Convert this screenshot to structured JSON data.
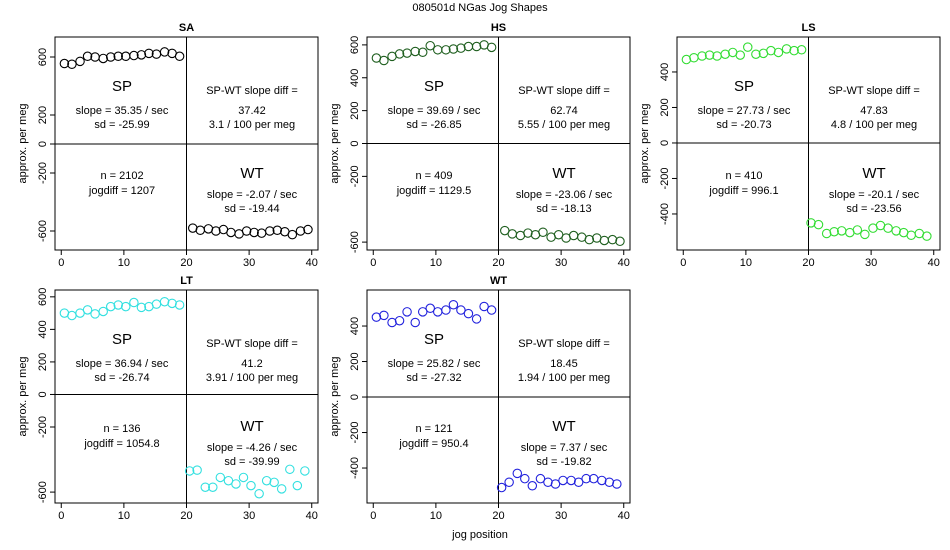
{
  "title": "080501d   NGas Jog Shapes",
  "xlabel": "jog position",
  "chart_data": [
    {
      "type": "scatter",
      "title": "SA",
      "ylabel": "approx. per meg",
      "color": "#000000",
      "xlim": [
        -1,
        41
      ],
      "ylim": [
        -731,
        738
      ],
      "xticks": [
        0,
        10,
        20,
        30,
        40
      ],
      "yticks": [
        -600,
        -200,
        0,
        200,
        600
      ],
      "hline": 0,
      "vline": 20,
      "series": [
        {
          "x": [
            0.5,
            1.7,
            3,
            4.2,
            5.4,
            6.7,
            7.9,
            9.1,
            10.3,
            11.6,
            12.8,
            14,
            15.2,
            16.5,
            17.7,
            18.9
          ],
          "values": [
            555,
            550,
            570,
            605,
            600,
            590,
            600,
            605,
            605,
            610,
            615,
            625,
            620,
            635,
            625,
            605
          ]
        },
        {
          "x": [
            21,
            22.2,
            23.5,
            24.7,
            25.9,
            27.1,
            28.4,
            29.6,
            30.8,
            32,
            33.3,
            34.5,
            35.7,
            36.9,
            38.2,
            39.4
          ],
          "values": [
            -580,
            -595,
            -585,
            -600,
            -590,
            -610,
            -620,
            -600,
            -610,
            -615,
            -600,
            -595,
            -605,
            -625,
            -600,
            -590
          ]
        }
      ],
      "sp_stats": [
        "SP",
        "slope = 35.35 / sec",
        "sd = -25.99"
      ],
      "diff_stats": [
        "SP-WT slope diff =",
        "37.42",
        "3.1 / 100 per meg"
      ],
      "run_stats": [
        "n = 2102",
        "jogdiff = 1207"
      ],
      "wt_stats": [
        "WT",
        "slope = -2.07 / sec",
        "sd = -19.44"
      ]
    },
    {
      "type": "scatter",
      "title": "HS",
      "ylabel": "approx. per meg",
      "color": "#1e5e1e",
      "xlim": [
        -1,
        41
      ],
      "ylim": [
        -648,
        648
      ],
      "xticks": [
        0,
        10,
        20,
        30,
        40
      ],
      "yticks": [
        -600,
        -200,
        0,
        200,
        400,
        600
      ],
      "hline": 0,
      "vline": 20,
      "series": [
        {
          "x": [
            0.5,
            1.7,
            3,
            4.2,
            5.4,
            6.7,
            7.9,
            9.1,
            10.3,
            11.6,
            12.8,
            14,
            15.2,
            16.5,
            17.7,
            18.9
          ],
          "values": [
            520,
            505,
            530,
            545,
            550,
            560,
            555,
            595,
            570,
            570,
            575,
            580,
            590,
            590,
            600,
            585
          ]
        },
        {
          "x": [
            21,
            22.2,
            23.5,
            24.7,
            25.9,
            27.1,
            28.4,
            29.6,
            30.8,
            32,
            33.3,
            34.5,
            35.7,
            36.9,
            38.2,
            39.4
          ],
          "values": [
            -530,
            -550,
            -560,
            -545,
            -555,
            -540,
            -570,
            -555,
            -575,
            -560,
            -570,
            -585,
            -575,
            -590,
            -585,
            -595
          ]
        }
      ],
      "sp_stats": [
        "SP",
        "slope = 39.69 / sec",
        "sd = -26.85"
      ],
      "diff_stats": [
        "SP-WT slope diff =",
        "62.74",
        "5.55 / 100 per meg"
      ],
      "run_stats": [
        "n = 409",
        "jogdiff = 1129.5"
      ],
      "wt_stats": [
        "WT",
        "slope = -23.06 / sec",
        "sd = -18.13"
      ]
    },
    {
      "type": "scatter",
      "title": "LS",
      "ylabel": "approx. per meg",
      "color": "#33dd33",
      "xlim": [
        -1,
        41
      ],
      "ylim": [
        -603,
        597
      ],
      "xticks": [
        0,
        10,
        20,
        30,
        40
      ],
      "yticks": [
        -400,
        -200,
        0,
        200,
        400
      ],
      "hline": 0,
      "vline": 20,
      "series": [
        {
          "x": [
            0.5,
            1.7,
            3,
            4.2,
            5.4,
            6.7,
            7.9,
            9.1,
            10.3,
            11.6,
            12.8,
            14,
            15.2,
            16.5,
            17.7,
            18.9
          ],
          "values": [
            470,
            480,
            490,
            495,
            490,
            500,
            510,
            495,
            540,
            500,
            505,
            520,
            510,
            530,
            520,
            525
          ]
        },
        {
          "x": [
            20.4,
            21.6,
            22.9,
            24.1,
            25.3,
            26.6,
            27.8,
            29,
            30.3,
            31.5,
            32.7,
            34,
            35.2,
            36.4,
            37.7,
            38.9
          ],
          "values": [
            -450,
            -460,
            -510,
            -500,
            -495,
            -505,
            -490,
            -515,
            -480,
            -465,
            -480,
            -495,
            -505,
            -520,
            -510,
            -525
          ]
        }
      ],
      "sp_stats": [
        "SP",
        "slope = 27.73 / sec",
        "sd = -20.73"
      ],
      "diff_stats": [
        "SP-WT slope diff =",
        "47.83",
        "4.8 / 100 per meg"
      ],
      "run_stats": [
        "n = 410",
        "jogdiff = 996.1"
      ],
      "wt_stats": [
        "WT",
        "slope = -20.1 / sec",
        "sd = -23.56"
      ]
    },
    {
      "type": "scatter",
      "title": "LT",
      "ylabel": "approx. per meg",
      "color": "#33e0e0",
      "xlim": [
        -1,
        41
      ],
      "ylim": [
        -667,
        642
      ],
      "xticks": [
        0,
        10,
        20,
        30,
        40
      ],
      "yticks": [
        -600,
        -200,
        0,
        200,
        400,
        600
      ],
      "hline": 0,
      "vline": 20,
      "series": [
        {
          "x": [
            0.5,
            1.7,
            3,
            4.2,
            5.4,
            6.7,
            7.9,
            9.1,
            10.3,
            11.6,
            12.8,
            14,
            15.2,
            16.5,
            17.7,
            18.9
          ],
          "values": [
            500,
            485,
            500,
            520,
            495,
            510,
            540,
            550,
            540,
            565,
            535,
            540,
            555,
            570,
            560,
            550
          ]
        },
        {
          "x": [
            20.5,
            21.7,
            23,
            24.2,
            25.4,
            26.7,
            27.9,
            29.1,
            30.3,
            31.6,
            32.8,
            34,
            35.2,
            36.5,
            37.7,
            38.9
          ],
          "values": [
            -470,
            -465,
            -570,
            -570,
            -510,
            -530,
            -550,
            -510,
            -560,
            -610,
            -530,
            -540,
            -580,
            -460,
            -560,
            -470
          ]
        }
      ],
      "sp_stats": [
        "SP",
        "slope = 36.94 / sec",
        "sd = -26.74"
      ],
      "diff_stats": [
        "SP-WT slope diff =",
        "41.2",
        "3.91 / 100 per meg"
      ],
      "run_stats": [
        "n = 136",
        "jogdiff = 1054.8"
      ],
      "wt_stats": [
        "WT",
        "slope = -4.26 / sec",
        "sd = -39.99"
      ]
    },
    {
      "type": "scatter",
      "title": "WT",
      "ylabel": "approx. per meg",
      "color": "#2222dd",
      "xlim": [
        -1,
        41
      ],
      "ylim": [
        -597,
        603
      ],
      "xticks": [
        0,
        10,
        20,
        30,
        40
      ],
      "yticks": [
        -400,
        -200,
        0,
        200,
        400
      ],
      "hline": 0,
      "vline": 20,
      "series": [
        {
          "x": [
            0.5,
            1.7,
            3,
            4.2,
            5.4,
            6.7,
            7.9,
            9.1,
            10.3,
            11.6,
            12.8,
            14,
            15.2,
            16.5,
            17.7,
            18.9
          ],
          "values": [
            450,
            460,
            420,
            430,
            480,
            420,
            480,
            500,
            480,
            490,
            520,
            490,
            470,
            440,
            510,
            490
          ]
        },
        {
          "x": [
            20.5,
            21.7,
            23,
            24.2,
            25.4,
            26.7,
            27.9,
            29.1,
            30.3,
            31.6,
            32.8,
            34,
            35.2,
            36.5,
            37.7,
            38.9
          ],
          "values": [
            -510,
            -480,
            -430,
            -460,
            -500,
            -460,
            -480,
            -490,
            -470,
            -470,
            -480,
            -460,
            -460,
            -470,
            -480,
            -490
          ]
        }
      ],
      "sp_stats": [
        "SP",
        "slope = 25.82 / sec",
        "sd = -27.32"
      ],
      "diff_stats": [
        "SP-WT slope diff =",
        "18.45",
        "1.94 / 100 per meg"
      ],
      "run_stats": [
        "n = 121",
        "jogdiff = 950.4"
      ],
      "wt_stats": [
        "WT",
        "slope = 7.37 / sec",
        "sd = -19.82"
      ]
    }
  ]
}
